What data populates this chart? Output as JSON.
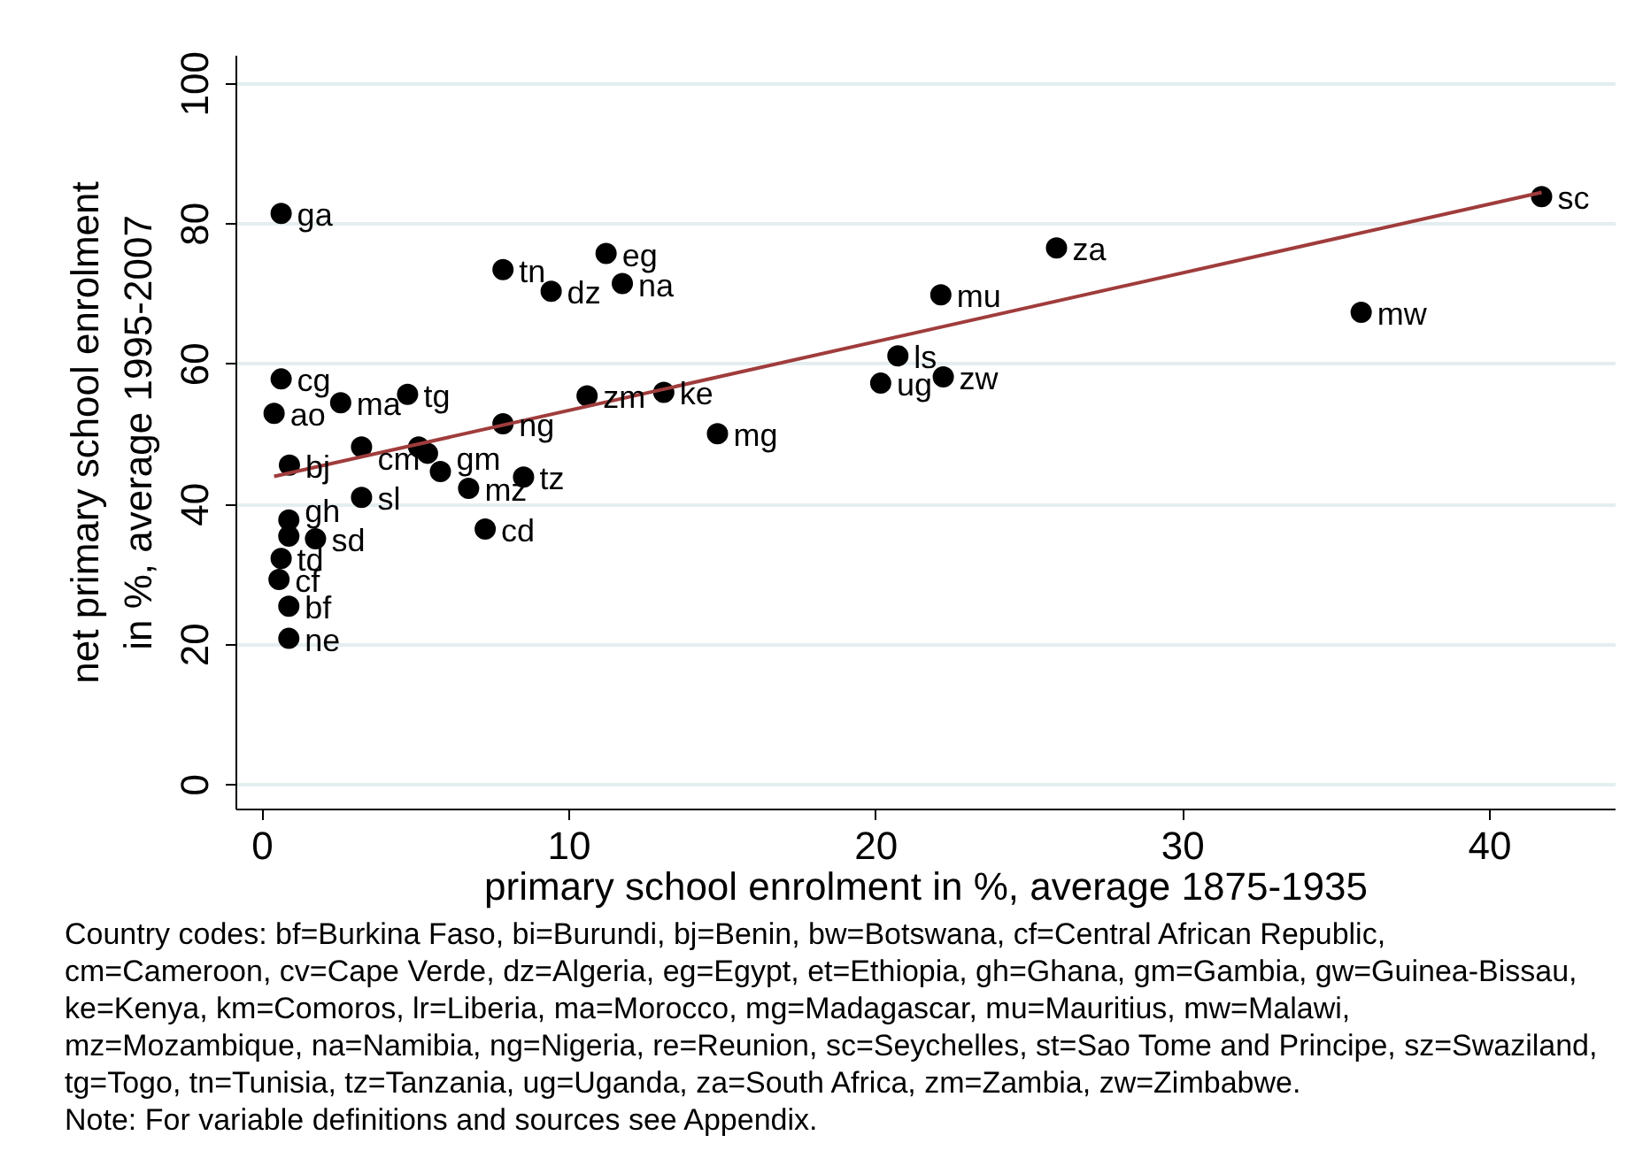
{
  "chart_data": {
    "type": "scatter",
    "xlabel": "primary school enrolment in %, average 1875-1935",
    "ylabel": "net primary school enrolment\nin %, average 1995-2007",
    "xlim": [
      -0.85,
      44.1
    ],
    "ylim": [
      -3.5,
      104
    ],
    "xticks": [
      0,
      10,
      20,
      30,
      40
    ],
    "yticks": [
      0,
      20,
      40,
      60,
      80,
      100
    ],
    "grid": "y",
    "series": [
      {
        "color": "#000000",
        "marker": "circle",
        "x": [
          0.61,
          7.84,
          9.41,
          11.2,
          11.73,
          25.88,
          41.69,
          22.11,
          35.81,
          20.71,
          20.15,
          22.19,
          14.83,
          0.61,
          0.38,
          2.55,
          4.73,
          10.58,
          13.08,
          7.84,
          3.23,
          5.09,
          5.38,
          0.88,
          5.8,
          6.72,
          8.51,
          3.23,
          7.26,
          0.86,
          0.86,
          1.73,
          0.61,
          0.54,
          0.86,
          0.86
        ],
        "values": [
          81.5,
          73.5,
          70.4,
          75.8,
          71.5,
          76.6,
          83.9,
          69.9,
          67.4,
          61.2,
          57.3,
          58.2,
          50.1,
          57.9,
          53.0,
          54.5,
          55.7,
          55.5,
          56.0,
          51.5,
          48.2,
          48.2,
          47.3,
          45.6,
          44.7,
          42.3,
          43.9,
          41.0,
          36.5,
          37.8,
          35.5,
          35.1,
          32.3,
          29.3,
          25.5,
          20.9
        ]
      },
      {
        "type": "line",
        "color": "#a03c3c",
        "x": [
          0.38,
          41.69
        ],
        "values": [
          44.0,
          84.5
        ]
      }
    ],
    "annotations": [
      {
        "text": "ga",
        "x": 0.61,
        "y": 81.5
      },
      {
        "text": "tn",
        "x": 7.84,
        "y": 73.5
      },
      {
        "text": "dz",
        "x": 9.41,
        "y": 70.4
      },
      {
        "text": "eg",
        "x": 11.2,
        "y": 75.8
      },
      {
        "text": "na",
        "x": 11.73,
        "y": 71.5
      },
      {
        "text": "za",
        "x": 25.88,
        "y": 76.6
      },
      {
        "text": "sc",
        "x": 41.69,
        "y": 83.9
      },
      {
        "text": "mu",
        "x": 22.11,
        "y": 69.9
      },
      {
        "text": "mw",
        "x": 35.81,
        "y": 67.4
      },
      {
        "text": "ls",
        "x": 20.71,
        "y": 61.2
      },
      {
        "text": "ug",
        "x": 20.15,
        "y": 57.3
      },
      {
        "text": "zw",
        "x": 22.19,
        "y": 58.2
      },
      {
        "text": "mg",
        "x": 14.83,
        "y": 50.1
      },
      {
        "text": "cg",
        "x": 0.61,
        "y": 57.9
      },
      {
        "text": "ao",
        "x": 0.38,
        "y": 53.0
      },
      {
        "text": "ma",
        "x": 2.55,
        "y": 54.5
      },
      {
        "text": "tg",
        "x": 4.73,
        "y": 55.7
      },
      {
        "text": "zm",
        "x": 10.58,
        "y": 55.5
      },
      {
        "text": "ke",
        "x": 13.08,
        "y": 56.0
      },
      {
        "text": "ng",
        "x": 7.84,
        "y": 51.5
      },
      {
        "text": "cm",
        "x": 3.23,
        "y": 48.2
      },
      {
        "text": "bj",
        "x": 0.88,
        "y": 45.6
      },
      {
        "text": "gm",
        "x": 5.8,
        "y": 44.7
      },
      {
        "text": "mz",
        "x": 6.72,
        "y": 42.3
      },
      {
        "text": "tz",
        "x": 8.51,
        "y": 43.9
      },
      {
        "text": "sl",
        "x": 3.23,
        "y": 41.0
      },
      {
        "text": "cd",
        "x": 7.26,
        "y": 36.5
      },
      {
        "text": "gh",
        "x": 0.86,
        "y": 37.8
      },
      {
        "text": "sd",
        "x": 1.73,
        "y": 35.1
      },
      {
        "text": "td",
        "x": 0.61,
        "y": 32.3
      },
      {
        "text": "cf",
        "x": 0.54,
        "y": 29.3
      },
      {
        "text": "bf",
        "x": 0.86,
        "y": 25.5
      },
      {
        "text": "ne",
        "x": 0.86,
        "y": 20.9
      },
      "Country codes: bf=Burkina Faso, bi=Burundi, bj=Benin, bw=Botswana, cf=Central African Republic,",
      "cm=Cameroon, cv=Cape Verde, dz=Algeria, eg=Egypt, et=Ethiopia, gh=Ghana, gm=Gambia, gw=Guinea-Bissau,",
      "ke=Kenya, km=Comoros, lr=Liberia, ma=Morocco, mg=Madagascar, mu=Mauritius, mw=Malawi,",
      "mz=Mozambique, na=Namibia, ng=Nigeria, re=Reunion, sc=Seychelles, st=Sao Tome and Principe, sz=Swaziland,",
      "tg=Togo, tn=Tunisia, tz=Tanzania, ug=Uganda, za=South Africa, zm=Zambia, zw=Zimbabwe.",
      "Note: For variable definitions and sources see Appendix."
    ]
  }
}
